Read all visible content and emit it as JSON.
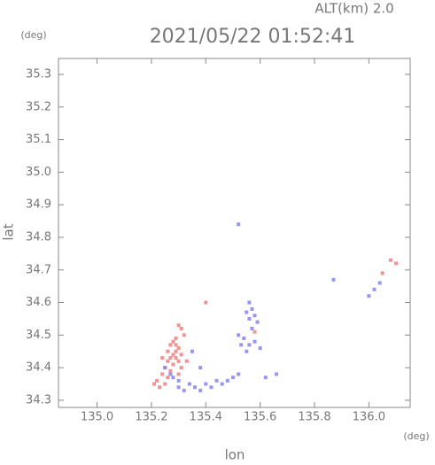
{
  "chart_data": {
    "type": "scatter",
    "title": "2021/05/22 01:52:41",
    "subtitle": "ALT(km) 2.0",
    "y_unit": "(deg)",
    "x_unit": "(deg)",
    "xlabel": "lon",
    "ylabel": "lat",
    "xlim": [
      134.858,
      136.152
    ],
    "ylim": [
      34.278,
      35.349
    ],
    "xticks": [
      {
        "value": 135.0,
        "label": "135.0"
      },
      135.2,
      135.4,
      135.6,
      135.8,
      {
        "value": 136.0,
        "label": "136.0"
      }
    ],
    "yticks": [
      34.3,
      34.4,
      34.5,
      34.6,
      34.7,
      34.8,
      34.9,
      {
        "value": 35.0,
        "label": "35.0"
      },
      35.1,
      35.2,
      35.3
    ],
    "series": [
      {
        "color": "#f07f7f",
        "x": [
          135.22,
          135.24,
          135.25,
          135.26,
          135.27,
          135.28,
          135.29,
          135.3,
          135.27,
          135.28,
          135.29,
          135.3,
          135.31,
          135.25,
          135.26,
          135.23,
          135.29,
          135.32,
          135.3,
          135.31,
          135.28,
          135.26,
          135.24,
          135.33,
          135.3,
          135.31,
          135.58,
          135.4,
          136.08,
          136.1,
          136.05,
          135.21,
          135.27,
          135.29
        ],
        "values": [
          34.36,
          34.38,
          34.4,
          34.42,
          34.43,
          34.44,
          34.45,
          34.42,
          34.39,
          34.41,
          34.43,
          34.46,
          34.44,
          34.35,
          34.37,
          34.34,
          34.47,
          34.5,
          34.53,
          34.52,
          34.48,
          34.45,
          34.43,
          34.42,
          34.38,
          34.4,
          34.51,
          34.6,
          34.73,
          34.72,
          34.69,
          34.35,
          34.47,
          34.49
        ]
      },
      {
        "color": "#8585ee",
        "x": [
          135.56,
          135.57,
          135.58,
          135.56,
          135.55,
          135.59,
          135.57,
          135.52,
          135.54,
          135.56,
          135.58,
          135.6,
          135.55,
          135.53,
          135.3,
          135.32,
          135.34,
          135.36,
          135.38,
          135.4,
          135.42,
          135.44,
          135.28,
          135.3,
          135.46,
          135.48,
          135.5,
          135.52,
          135.87,
          136.02,
          136.0,
          136.04,
          135.52,
          135.62,
          135.66,
          135.25,
          135.27,
          135.35,
          135.38
        ],
        "values": [
          34.6,
          34.58,
          34.56,
          34.55,
          34.57,
          34.54,
          34.52,
          34.5,
          34.49,
          34.47,
          34.48,
          34.46,
          34.45,
          34.47,
          34.34,
          34.33,
          34.35,
          34.34,
          34.33,
          34.35,
          34.34,
          34.36,
          34.37,
          34.36,
          34.35,
          34.36,
          34.37,
          34.38,
          34.67,
          34.64,
          34.62,
          34.66,
          34.84,
          34.37,
          34.38,
          34.4,
          34.38,
          34.45,
          34.4
        ]
      }
    ]
  }
}
